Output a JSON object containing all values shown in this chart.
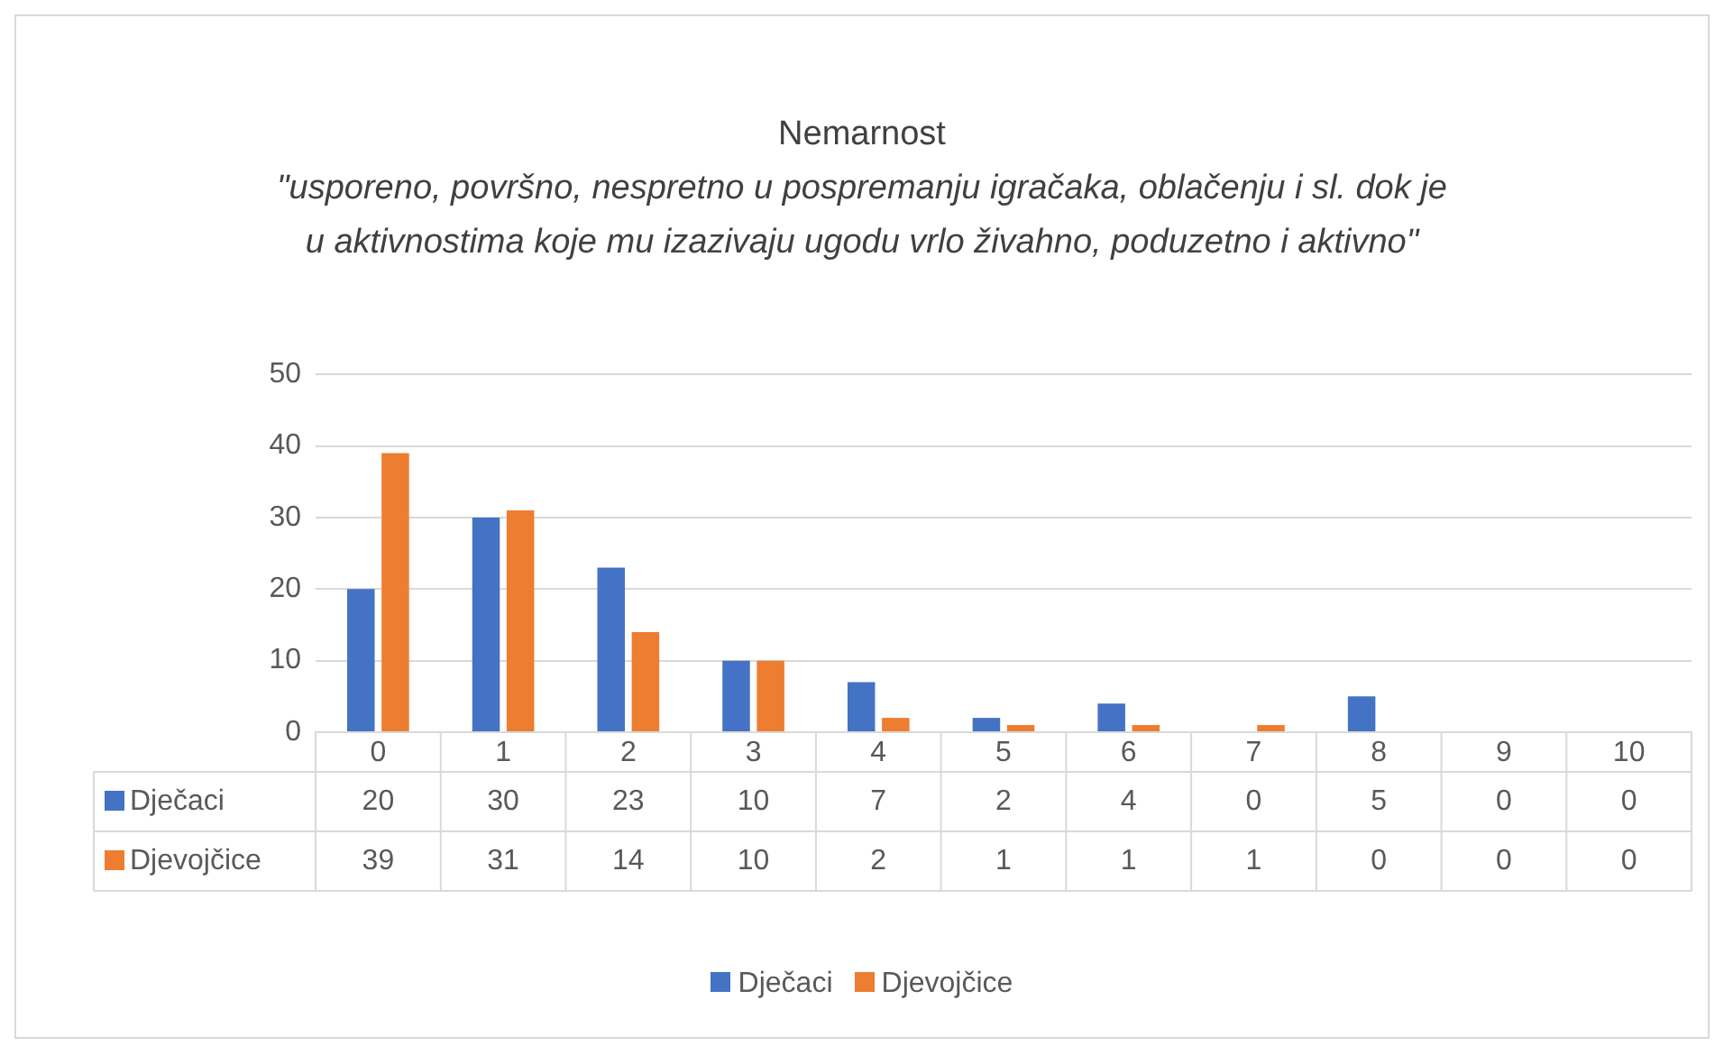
{
  "chart_data": {
    "type": "bar",
    "title": "Nemarnost",
    "subtitle": "\"usporeno, površno, nespretno u pospremanju igračaka, oblačenju i sl. dok je u aktivnostima koje mu izazivaju ugodu vrlo živahno, poduzetno i aktivno\"",
    "categories": [
      "0",
      "1",
      "2",
      "3",
      "4",
      "5",
      "6",
      "7",
      "8",
      "9",
      "10"
    ],
    "series": [
      {
        "name": "Dječaci",
        "color": "#4472c4",
        "values": [
          20,
          30,
          23,
          10,
          7,
          2,
          4,
          0,
          5,
          0,
          0
        ]
      },
      {
        "name": "Djevojčice",
        "color": "#ed7d31",
        "values": [
          39,
          31,
          14,
          10,
          2,
          1,
          1,
          1,
          0,
          0,
          0
        ]
      }
    ],
    "ylim": [
      0,
      50
    ],
    "yticks": [
      0,
      10,
      20,
      30,
      40,
      50
    ],
    "grid": "y",
    "legend": "bottom",
    "data_labels": true
  }
}
